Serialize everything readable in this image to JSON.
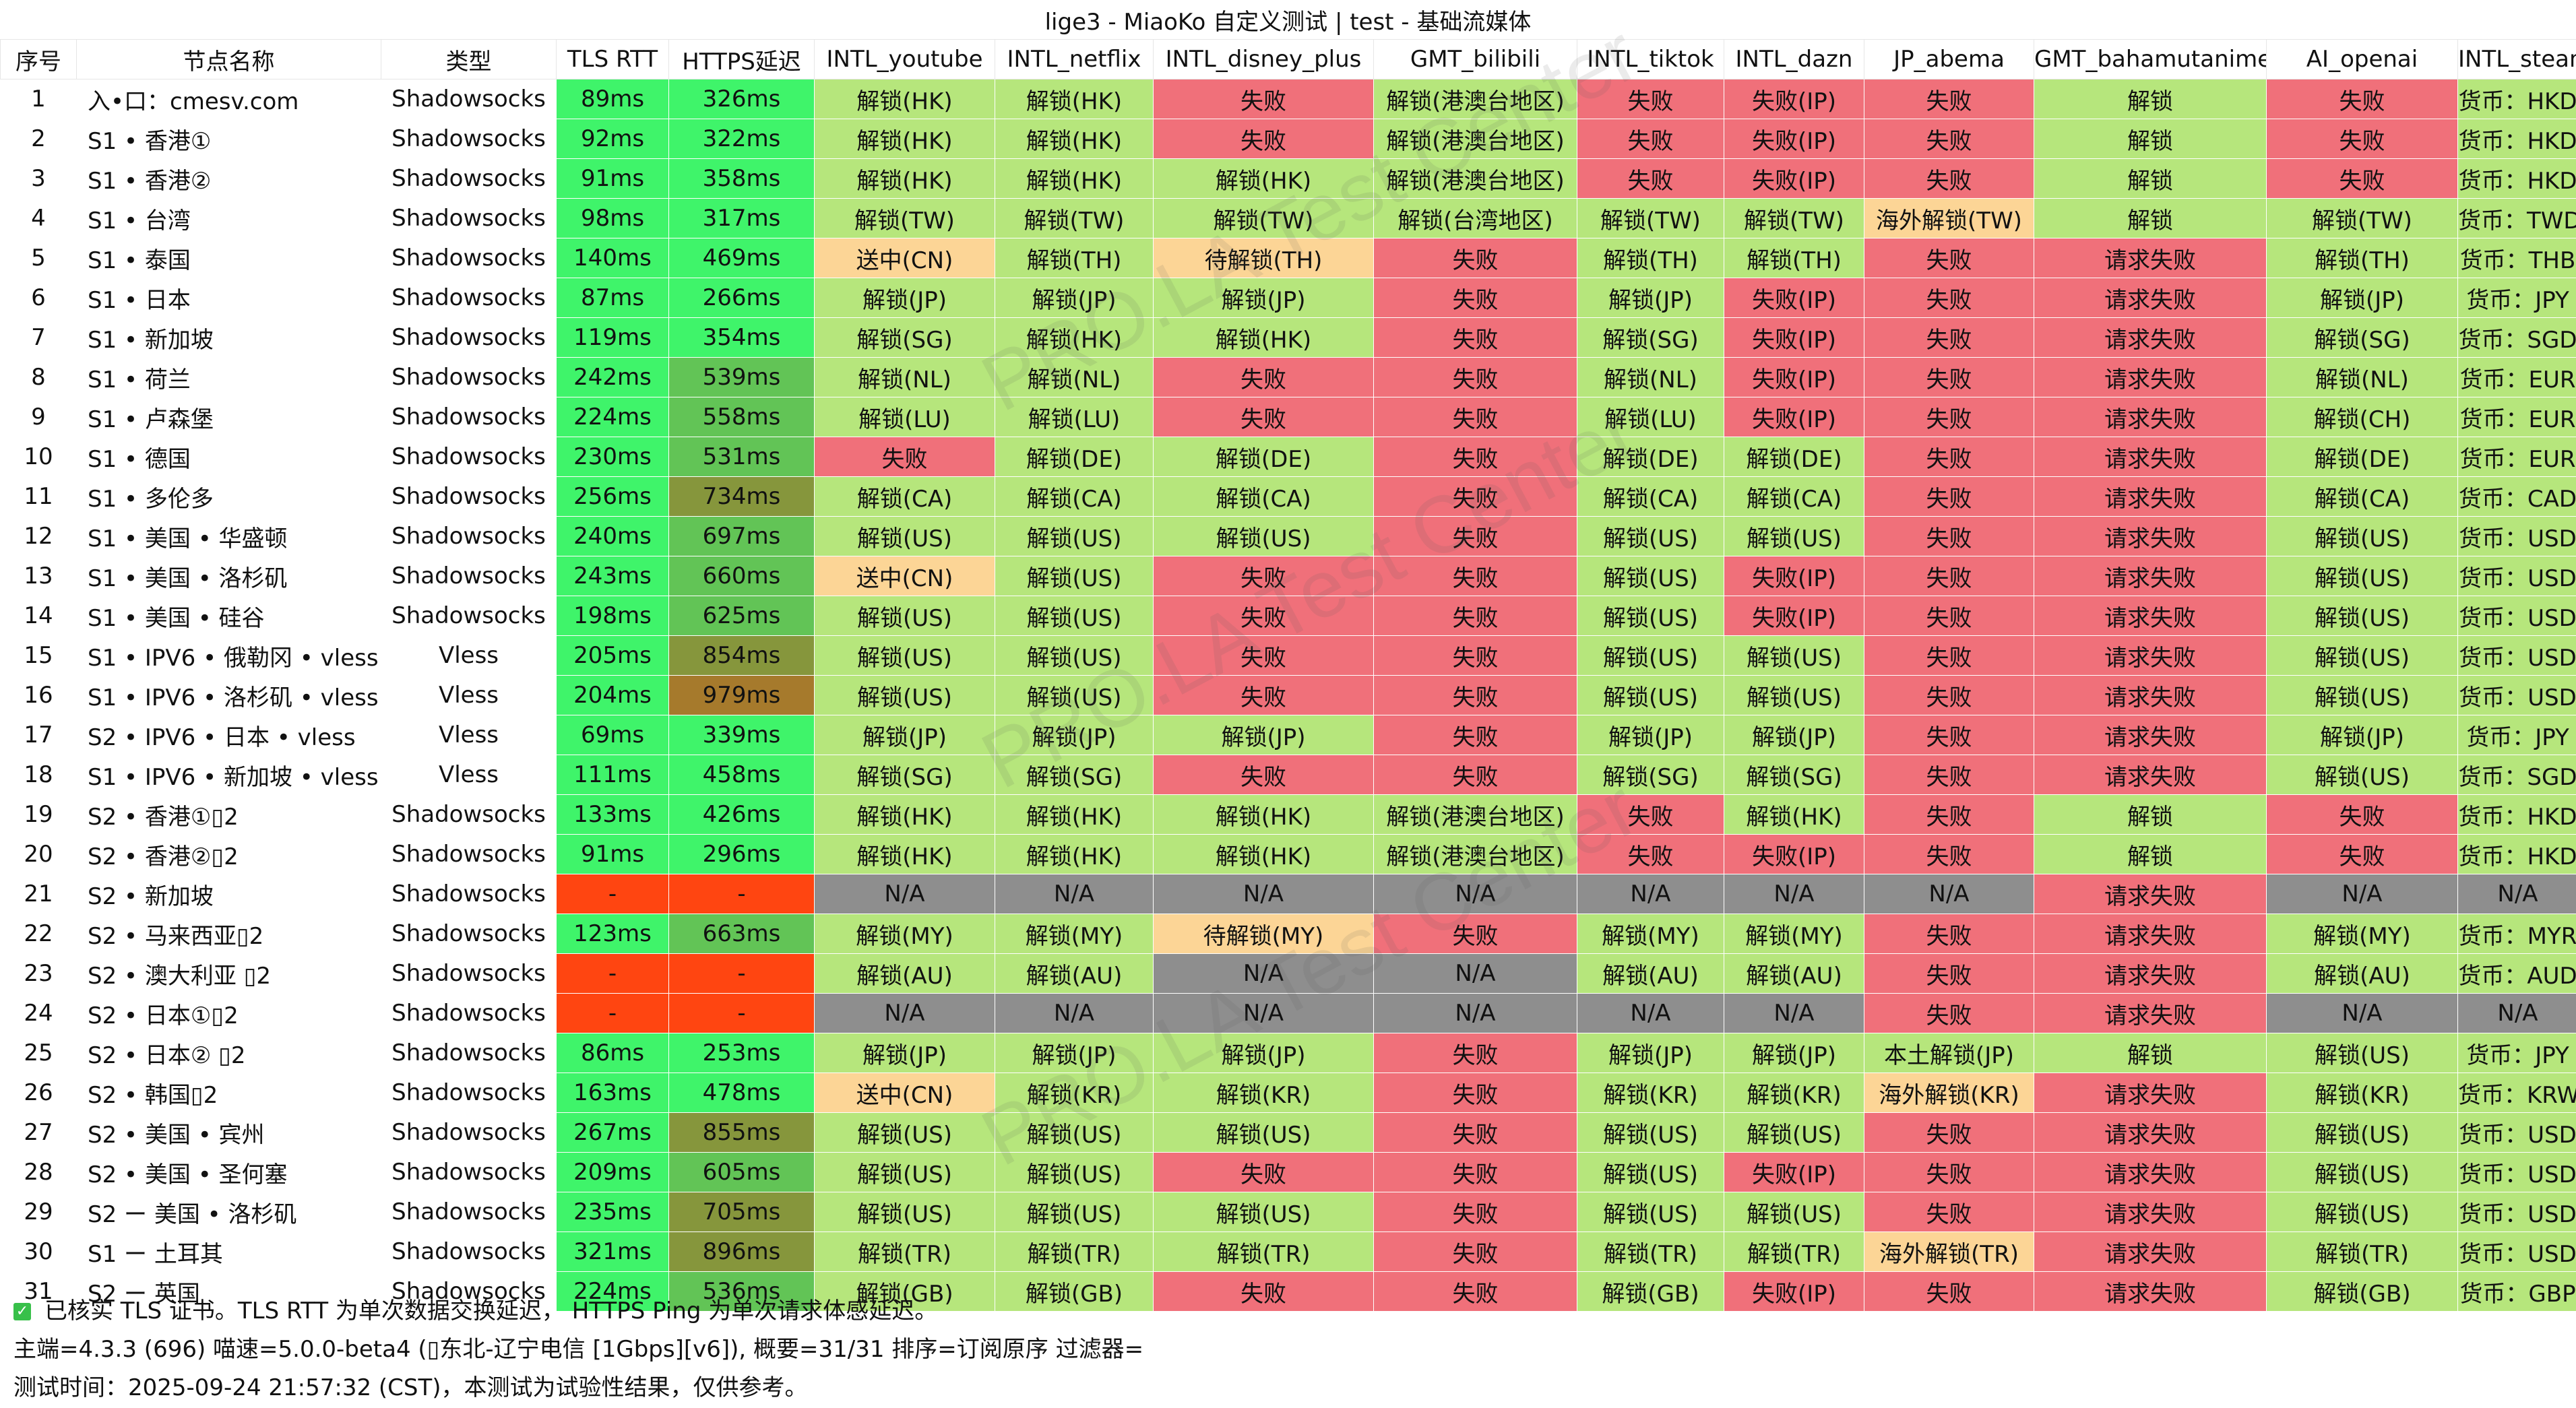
{
  "title": "lige3 - MiaoKo 自定义测试 | test - 基础流媒体",
  "colors": {
    "header_bg": "#ffffff",
    "rtt_green": "#3ff46a",
    "rtt_mid_green": "#62c456",
    "rtt_olive": "#86963c",
    "rtt_brown": "#a67a2c",
    "error_orange_red": "#ff4511",
    "unlock_green": "#b6e67c",
    "fail_red": "#f0707a",
    "pending_orange": "#fcd596",
    "na_gray": "#8e8e8e"
  },
  "columns": [
    "序号",
    "节点名称",
    "类型",
    "TLS RTT",
    "HTTPS延迟",
    "INTL_youtube",
    "INTL_netflix",
    "INTL_disney_plus",
    "GMT_bilibili",
    "INTL_tiktok",
    "INTL_dazn",
    "JP_abema",
    "GMT_bahamutanime",
    "AI_openai",
    "INTL_steam"
  ],
  "rows": [
    [
      "1",
      "入•口：cmesv.com",
      "Shadowsocks",
      "89ms",
      "326ms",
      "解锁(HK)",
      "解锁(HK)",
      "失败",
      "解锁(港澳台地区)",
      "失败",
      "失败(IP)",
      "失败",
      "解锁",
      "失败",
      "货币：HKD"
    ],
    [
      "2",
      "S1 • 香港①",
      "Shadowsocks",
      "92ms",
      "322ms",
      "解锁(HK)",
      "解锁(HK)",
      "失败",
      "解锁(港澳台地区)",
      "失败",
      "失败(IP)",
      "失败",
      "解锁",
      "失败",
      "货币：HKD"
    ],
    [
      "3",
      "S1 • 香港②",
      "Shadowsocks",
      "91ms",
      "358ms",
      "解锁(HK)",
      "解锁(HK)",
      "解锁(HK)",
      "解锁(港澳台地区)",
      "失败",
      "失败(IP)",
      "失败",
      "解锁",
      "失败",
      "货币：HKD"
    ],
    [
      "4",
      "S1 • 台湾",
      "Shadowsocks",
      "98ms",
      "317ms",
      "解锁(TW)",
      "解锁(TW)",
      "解锁(TW)",
      "解锁(台湾地区)",
      "解锁(TW)",
      "解锁(TW)",
      "海外解锁(TW)",
      "解锁",
      "解锁(TW)",
      "货币：TWD"
    ],
    [
      "5",
      "S1 • 泰国",
      "Shadowsocks",
      "140ms",
      "469ms",
      "送中(CN)",
      "解锁(TH)",
      "待解锁(TH)",
      "失败",
      "解锁(TH)",
      "解锁(TH)",
      "失败",
      "请求失败",
      "解锁(TH)",
      "货币：THB"
    ],
    [
      "6",
      "S1 • 日本",
      "Shadowsocks",
      "87ms",
      "266ms",
      "解锁(JP)",
      "解锁(JP)",
      "解锁(JP)",
      "失败",
      "解锁(JP)",
      "失败(IP)",
      "失败",
      "请求失败",
      "解锁(JP)",
      "货币：JPY"
    ],
    [
      "7",
      "S1 • 新加坡",
      "Shadowsocks",
      "119ms",
      "354ms",
      "解锁(SG)",
      "解锁(HK)",
      "解锁(HK)",
      "失败",
      "解锁(SG)",
      "失败(IP)",
      "失败",
      "请求失败",
      "解锁(SG)",
      "货币：SGD"
    ],
    [
      "8",
      "S1 • 荷兰",
      "Shadowsocks",
      "242ms",
      "539ms",
      "解锁(NL)",
      "解锁(NL)",
      "失败",
      "失败",
      "解锁(NL)",
      "失败(IP)",
      "失败",
      "请求失败",
      "解锁(NL)",
      "货币：EUR"
    ],
    [
      "9",
      "S1 • 卢森堡",
      "Shadowsocks",
      "224ms",
      "558ms",
      "解锁(LU)",
      "解锁(LU)",
      "失败",
      "失败",
      "解锁(LU)",
      "失败(IP)",
      "失败",
      "请求失败",
      "解锁(CH)",
      "货币：EUR"
    ],
    [
      "10",
      "S1 • 德国",
      "Shadowsocks",
      "230ms",
      "531ms",
      "失败",
      "解锁(DE)",
      "解锁(DE)",
      "失败",
      "解锁(DE)",
      "解锁(DE)",
      "失败",
      "请求失败",
      "解锁(DE)",
      "货币：EUR"
    ],
    [
      "11",
      "S1 • 多伦多",
      "Shadowsocks",
      "256ms",
      "734ms",
      "解锁(CA)",
      "解锁(CA)",
      "解锁(CA)",
      "失败",
      "解锁(CA)",
      "解锁(CA)",
      "失败",
      "请求失败",
      "解锁(CA)",
      "货币：CAD"
    ],
    [
      "12",
      "S1 • 美国 • 华盛顿",
      "Shadowsocks",
      "240ms",
      "697ms",
      "解锁(US)",
      "解锁(US)",
      "解锁(US)",
      "失败",
      "解锁(US)",
      "解锁(US)",
      "失败",
      "请求失败",
      "解锁(US)",
      "货币：USD"
    ],
    [
      "13",
      "S1 • 美国 • 洛杉矶",
      "Shadowsocks",
      "243ms",
      "660ms",
      "送中(CN)",
      "解锁(US)",
      "失败",
      "失败",
      "解锁(US)",
      "失败(IP)",
      "失败",
      "请求失败",
      "解锁(US)",
      "货币：USD"
    ],
    [
      "14",
      "S1 • 美国 • 硅谷",
      "Shadowsocks",
      "198ms",
      "625ms",
      "解锁(US)",
      "解锁(US)",
      "失败",
      "失败",
      "解锁(US)",
      "失败(IP)",
      "失败",
      "请求失败",
      "解锁(US)",
      "货币：USD"
    ],
    [
      "15",
      "S1 • IPV6 • 俄勒冈 • vless",
      "Vless",
      "205ms",
      "854ms",
      "解锁(US)",
      "解锁(US)",
      "失败",
      "失败",
      "解锁(US)",
      "解锁(US)",
      "失败",
      "请求失败",
      "解锁(US)",
      "货币：USD"
    ],
    [
      "16",
      "S1 • IPV6 • 洛杉矶 • vless",
      "Vless",
      "204ms",
      "979ms",
      "解锁(US)",
      "解锁(US)",
      "失败",
      "失败",
      "解锁(US)",
      "解锁(US)",
      "失败",
      "请求失败",
      "解锁(US)",
      "货币：USD"
    ],
    [
      "17",
      "S2 • IPV6 • 日本 • vless",
      "Vless",
      "69ms",
      "339ms",
      "解锁(JP)",
      "解锁(JP)",
      "解锁(JP)",
      "失败",
      "解锁(JP)",
      "解锁(JP)",
      "失败",
      "请求失败",
      "解锁(JP)",
      "货币：JPY"
    ],
    [
      "18",
      "S1 • IPV6 • 新加坡 • vless",
      "Vless",
      "111ms",
      "458ms",
      "解锁(SG)",
      "解锁(SG)",
      "失败",
      "失败",
      "解锁(SG)",
      "解锁(SG)",
      "失败",
      "请求失败",
      "解锁(US)",
      "货币：SGD"
    ],
    [
      "19",
      "S2 • 香港①▯2",
      "Shadowsocks",
      "133ms",
      "426ms",
      "解锁(HK)",
      "解锁(HK)",
      "解锁(HK)",
      "解锁(港澳台地区)",
      "失败",
      "解锁(HK)",
      "失败",
      "解锁",
      "失败",
      "货币：HKD"
    ],
    [
      "20",
      "S2 • 香港②▯2",
      "Shadowsocks",
      "91ms",
      "296ms",
      "解锁(HK)",
      "解锁(HK)",
      "解锁(HK)",
      "解锁(港澳台地区)",
      "失败",
      "失败(IP)",
      "失败",
      "解锁",
      "失败",
      "货币：HKD"
    ],
    [
      "21",
      "S2 • 新加坡",
      "Shadowsocks",
      "-",
      "-",
      "N/A",
      "N/A",
      "N/A",
      "N/A",
      "N/A",
      "N/A",
      "N/A",
      "请求失败",
      "N/A",
      "N/A"
    ],
    [
      "22",
      "S2 • 马来西亚▯2",
      "Shadowsocks",
      "123ms",
      "663ms",
      "解锁(MY)",
      "解锁(MY)",
      "待解锁(MY)",
      "失败",
      "解锁(MY)",
      "解锁(MY)",
      "失败",
      "请求失败",
      "解锁(MY)",
      "货币：MYR"
    ],
    [
      "23",
      "S2 • 澳大利亚 ▯2",
      "Shadowsocks",
      "-",
      "-",
      "解锁(AU)",
      "解锁(AU)",
      "N/A",
      "N/A",
      "解锁(AU)",
      "解锁(AU)",
      "失败",
      "请求失败",
      "解锁(AU)",
      "货币：AUD"
    ],
    [
      "24",
      "S2 • 日本①▯2",
      "Shadowsocks",
      "-",
      "-",
      "N/A",
      "N/A",
      "N/A",
      "N/A",
      "N/A",
      "N/A",
      "失败",
      "请求失败",
      "N/A",
      "N/A"
    ],
    [
      "25",
      "S2 • 日本② ▯2",
      "Shadowsocks",
      "86ms",
      "253ms",
      "解锁(JP)",
      "解锁(JP)",
      "解锁(JP)",
      "失败",
      "解锁(JP)",
      "解锁(JP)",
      "本土解锁(JP)",
      "解锁",
      "解锁(US)",
      "货币：JPY"
    ],
    [
      "26",
      "S2 • 韩国▯2",
      "Shadowsocks",
      "163ms",
      "478ms",
      "送中(CN)",
      "解锁(KR)",
      "解锁(KR)",
      "失败",
      "解锁(KR)",
      "解锁(KR)",
      "海外解锁(KR)",
      "请求失败",
      "解锁(KR)",
      "货币：KRW"
    ],
    [
      "27",
      "S2 • 美国 • 宾州",
      "Shadowsocks",
      "267ms",
      "855ms",
      "解锁(US)",
      "解锁(US)",
      "解锁(US)",
      "失败",
      "解锁(US)",
      "解锁(US)",
      "失败",
      "请求失败",
      "解锁(US)",
      "货币：USD"
    ],
    [
      "28",
      "S2 • 美国 • 圣何塞",
      "Shadowsocks",
      "209ms",
      "605ms",
      "解锁(US)",
      "解锁(US)",
      "失败",
      "失败",
      "解锁(US)",
      "失败(IP)",
      "失败",
      "请求失败",
      "解锁(US)",
      "货币：USD"
    ],
    [
      "29",
      "S2 ー 美国 • 洛杉矶",
      "Shadowsocks",
      "235ms",
      "705ms",
      "解锁(US)",
      "解锁(US)",
      "解锁(US)",
      "失败",
      "解锁(US)",
      "解锁(US)",
      "失败",
      "请求失败",
      "解锁(US)",
      "货币：USD"
    ],
    [
      "30",
      "S1 ー 土耳其",
      "Shadowsocks",
      "321ms",
      "896ms",
      "解锁(TR)",
      "解锁(TR)",
      "解锁(TR)",
      "失败",
      "解锁(TR)",
      "解锁(TR)",
      "海外解锁(TR)",
      "请求失败",
      "解锁(TR)",
      "货币：USD"
    ],
    [
      "31",
      "S2 ー 英国",
      "Shadowsocks",
      "224ms",
      "536ms",
      "解锁(GB)",
      "解锁(GB)",
      "失败",
      "失败",
      "解锁(GB)",
      "失败(IP)",
      "失败",
      "请求失败",
      "解锁(GB)",
      "货币：GBP"
    ]
  ],
  "footer": {
    "line1": "已核实 TLS 证书。TLS RTT 为单次数据交换延迟， HTTPS Ping 为单次请求体感延迟。",
    "line2": "主端=4.3.3 (696) 喵速=5.0.0-beta4 (▯东北-辽宁电信 [1Gbps][v6]), 概要=31/31 排序=订阅原序 过滤器=",
    "line3": "测试时间：2025-09-24 21:57:32 (CST)，本测试为试验性结果，仅供参考。"
  },
  "watermark": "PRO.LA Test Center"
}
